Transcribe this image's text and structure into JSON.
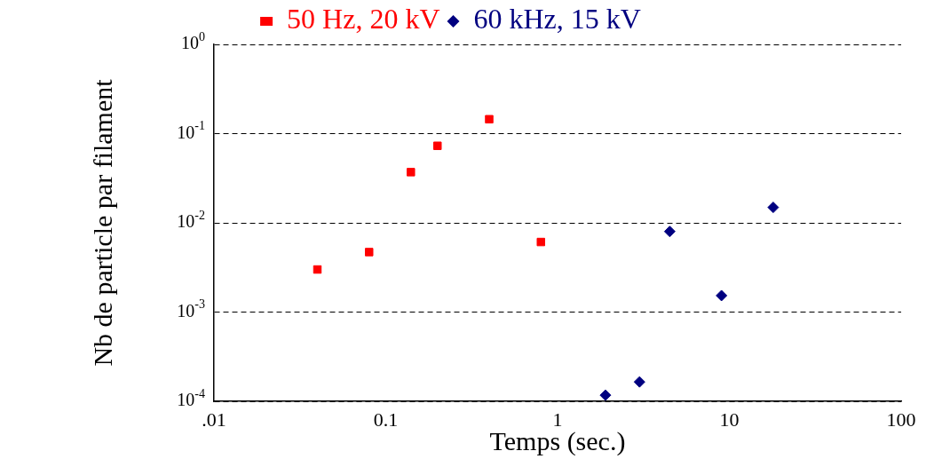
{
  "chart_data": {
    "type": "scatter",
    "xlabel": "Temps (sec.)",
    "ylabel": "Nb de particle par filament",
    "log": "xy",
    "grid": "y",
    "legend": "top",
    "xlim": [
      0.01,
      100
    ],
    "xticks": [
      {
        "value": 0.01,
        "label": ".01"
      },
      {
        "value": 0.1,
        "label": "0.1"
      },
      1,
      10,
      100
    ],
    "ylim": [
      0.0001,
      1
    ],
    "yticks": [
      {
        "value": 0.0001,
        "label": "10$^{-4}$"
      },
      {
        "value": 0.001,
        "label": "10$^{-3}$"
      },
      {
        "value": 0.01,
        "label": "10$^{-2}$"
      },
      {
        "value": 0.1,
        "label": "10$^{-1}$"
      },
      {
        "value": 1,
        "label": "10$^{0}$"
      }
    ],
    "series": [
      {
        "name": "50 Hz, 20 kV",
        "color": "#ff0000",
        "marker": "square",
        "x": [
          0.04,
          0.08,
          0.14,
          0.2,
          0.4,
          0.8
        ],
        "values": [
          0.003,
          0.0047,
          0.037,
          0.073,
          0.145,
          0.0061
        ]
      },
      {
        "name": "60 kHz, 15 kV",
        "color": "#000080",
        "marker": "diamond",
        "x": [
          1.9,
          3,
          4.5,
          9,
          18
        ],
        "values": [
          0.000117,
          0.000165,
          0.008,
          0.00153,
          0.0149
        ]
      }
    ]
  }
}
